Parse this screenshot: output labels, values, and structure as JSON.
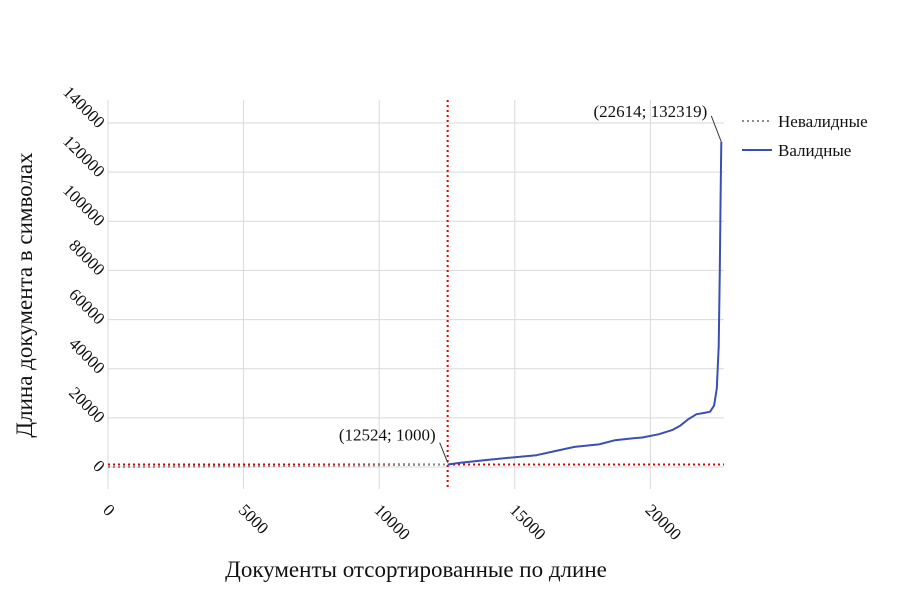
{
  "chart_data": {
    "type": "line",
    "xlabel": "Документы отсортированные по длине",
    "ylabel": "Длина документа в символах",
    "xlim": [
      0,
      22800
    ],
    "ylim": [
      0,
      140000
    ],
    "x_ticks": [
      "0",
      "5000",
      "10000",
      "15000",
      "20000"
    ],
    "y_ticks": [
      "0",
      "20000",
      "40000",
      "60000",
      "80000",
      "100000",
      "120000",
      "140000"
    ],
    "grid": true,
    "legend_position": "right",
    "series": [
      {
        "name": "Невалидные",
        "style": "dotted",
        "color": "#8c8c8c",
        "x": [
          0,
          2000,
          4000,
          6000,
          8000,
          10000,
          12524
        ],
        "y": [
          0,
          100,
          200,
          350,
          500,
          700,
          1000
        ]
      },
      {
        "name": "Валидные",
        "style": "solid",
        "color": "#3a4fb5",
        "x": [
          12524,
          13000,
          14000,
          15000,
          15800,
          16500,
          17200,
          18100,
          18700,
          19200,
          19700,
          20300,
          20800,
          21100,
          21400,
          21700,
          22000,
          22200,
          22350,
          22450,
          22520,
          22560,
          22590,
          22614
        ],
        "y": [
          1000,
          1700,
          2900,
          4000,
          4800,
          6500,
          8200,
          9200,
          10900,
          11500,
          12000,
          13300,
          15000,
          16800,
          19500,
          21500,
          22000,
          22500,
          25000,
          32000,
          49000,
          80000,
          110000,
          132319
        ]
      }
    ],
    "reference_lines": [
      {
        "orientation": "vertical",
        "x": 12524,
        "color": "#e00000",
        "style": "dotted"
      },
      {
        "orientation": "horizontal",
        "y": 1000,
        "color": "#e00000",
        "style": "dotted"
      }
    ],
    "annotations": [
      {
        "text": "(12524; 1000)",
        "x": 12524,
        "y": 1000
      },
      {
        "text": "(22614; 132319)",
        "x": 22614,
        "y": 132319
      }
    ]
  },
  "colors": {
    "grid": "#d9d9d9",
    "reference": "#e00000",
    "invalid": "#8c8c8c",
    "valid": "#3a4fb5"
  }
}
